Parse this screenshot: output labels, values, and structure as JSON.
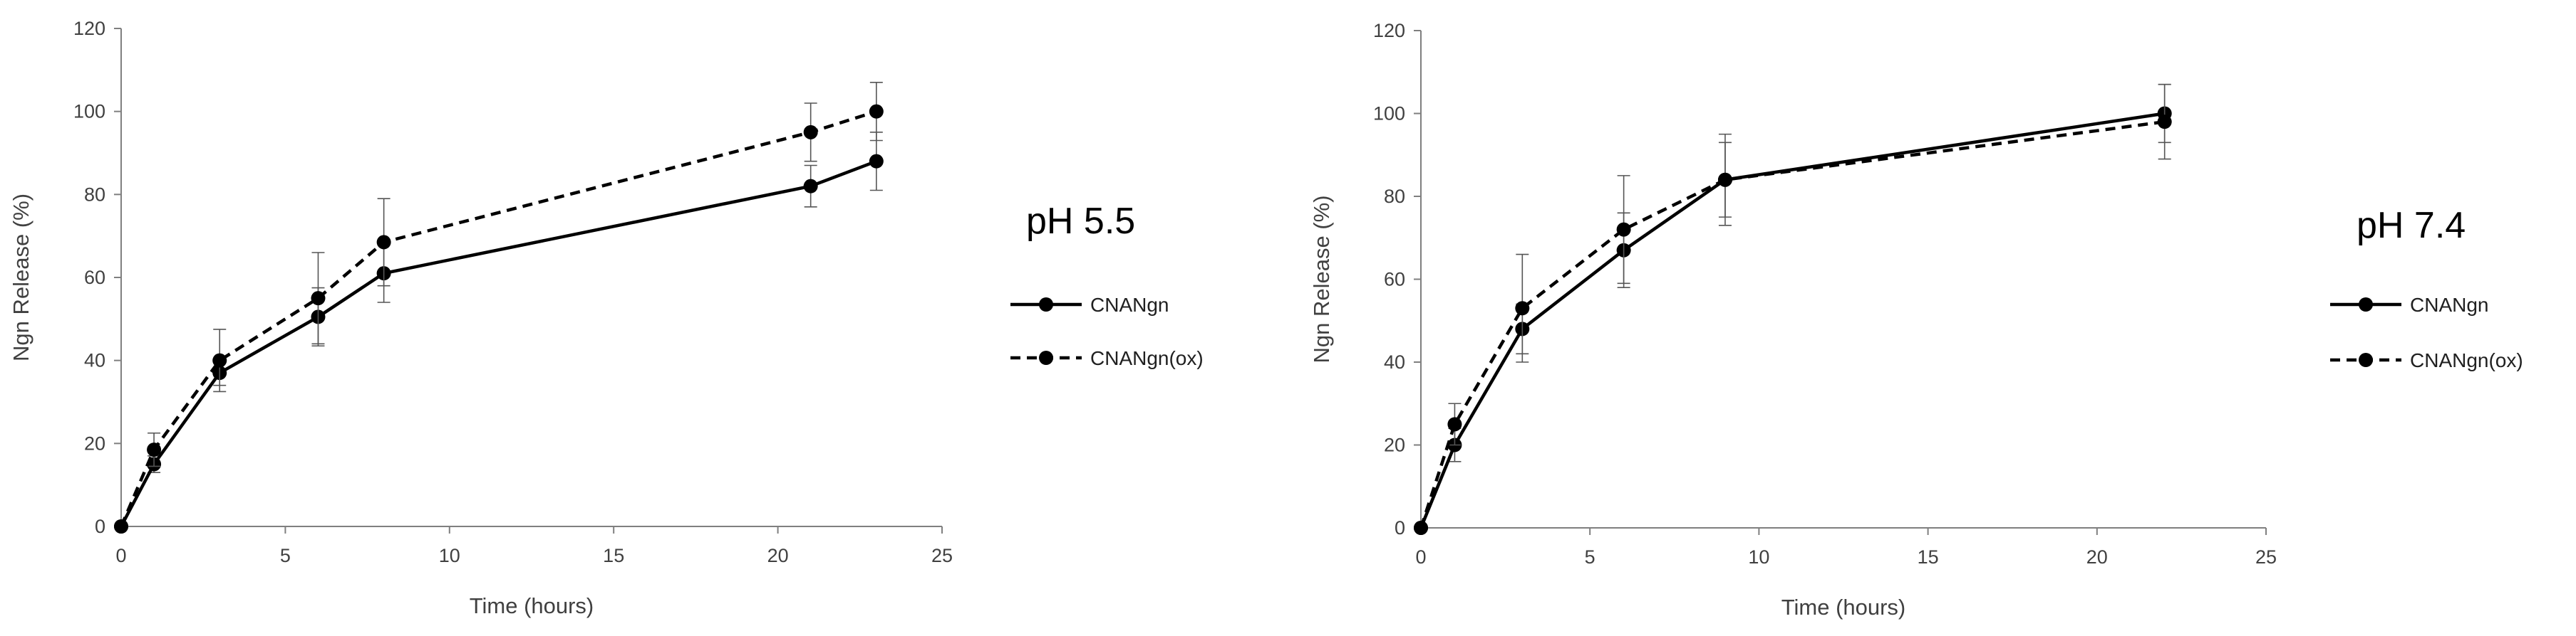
{
  "colors": {
    "series": "#000000",
    "axis": "#7f7f7f",
    "text": "#404040",
    "background": "#ffffff"
  },
  "chart_data": [
    {
      "type": "line",
      "title": "",
      "panel_label": "pH 5.5",
      "xlabel": "Time (hours)",
      "ylabel": "Ngn Release (%)",
      "xlim": [
        0,
        25
      ],
      "ylim": [
        0,
        120
      ],
      "xticks": [
        "0",
        "5",
        "10",
        "15",
        "20",
        "25"
      ],
      "yticks": [
        "0",
        "20",
        "40",
        "60",
        "80",
        "100",
        "120"
      ],
      "grid": false,
      "legend_placement": "right",
      "series": [
        {
          "name": "CNANgn",
          "line_style": "solid",
          "marker": "circle",
          "x": [
            0,
            1,
            3,
            6,
            8,
            21,
            23
          ],
          "y": [
            0,
            15,
            37,
            50.5,
            61,
            82,
            88
          ],
          "error": [
            0,
            2,
            3,
            7,
            7,
            5,
            7
          ]
        },
        {
          "name": "CNANgn(ox)",
          "line_style": "dashed",
          "marker": "circle",
          "x": [
            0,
            1,
            3,
            6,
            8,
            21,
            23
          ],
          "y": [
            0,
            18.5,
            40,
            55,
            68.5,
            95,
            100
          ],
          "error": [
            0,
            4,
            7.5,
            11,
            10.5,
            7,
            7
          ]
        }
      ]
    },
    {
      "type": "line",
      "title": "",
      "panel_label": "pH 7.4",
      "xlabel": "Time (hours)",
      "ylabel": "Ngn Release (%)",
      "xlim": [
        0,
        25
      ],
      "ylim": [
        0,
        120
      ],
      "xticks": [
        "0",
        "5",
        "10",
        "15",
        "20",
        "25"
      ],
      "yticks": [
        "0",
        "20",
        "40",
        "60",
        "80",
        "100",
        "120"
      ],
      "grid": false,
      "legend_placement": "right",
      "series": [
        {
          "name": "CNANgn",
          "line_style": "solid",
          "marker": "circle",
          "x": [
            0,
            1,
            3,
            6,
            9,
            22
          ],
          "y": [
            0,
            20,
            48,
            67,
            84,
            100
          ],
          "error": [
            0,
            4,
            6,
            9,
            9,
            7
          ]
        },
        {
          "name": "CNANgn(ox)",
          "line_style": "dashed",
          "marker": "circle",
          "x": [
            0,
            1,
            3,
            6,
            9,
            22
          ],
          "y": [
            0,
            25,
            53,
            72,
            84,
            98
          ],
          "error": [
            0,
            5,
            13,
            13,
            11,
            9
          ]
        }
      ]
    }
  ]
}
